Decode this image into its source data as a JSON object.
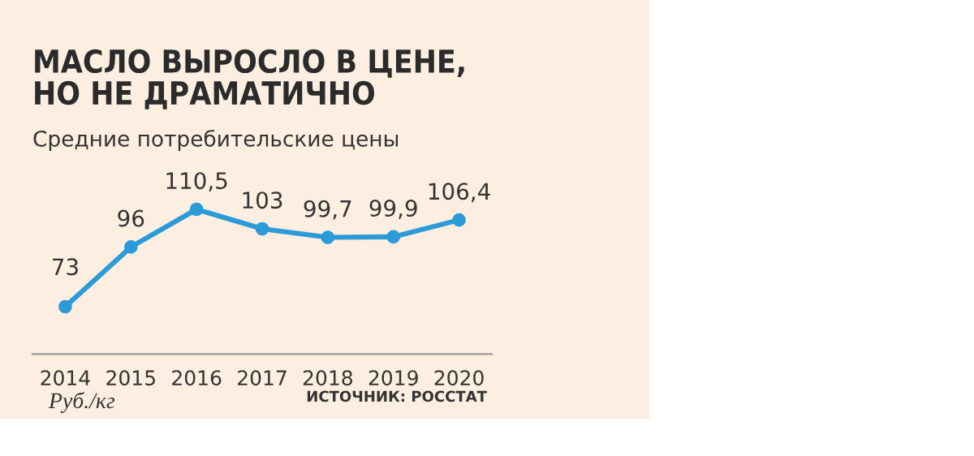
{
  "chart_data": {
    "type": "line",
    "title": "МАСЛО ВЫРОСЛО В ЦЕНЕ,\nНО НЕ ДРАМАТИЧНО",
    "subtitle": "Средние потребительские цены",
    "categories": [
      "2014",
      "2015",
      "2016",
      "2017",
      "2018",
      "2019",
      "2020"
    ],
    "series": [
      {
        "color": "#2b9bd8",
        "values": [
          73,
          96,
          110.5,
          103,
          99.7,
          99.9,
          106.4
        ],
        "value_labels": [
          "73",
          "96",
          "110,5",
          "103",
          "99,7",
          "99,9",
          "106,4"
        ]
      }
    ],
    "marker": "circle",
    "line_style": "solid",
    "grid": false,
    "legend": false,
    "annotations": [
      "Руб./кг",
      "ИСТОЧНИК: РОССТАТ"
    ]
  }
}
